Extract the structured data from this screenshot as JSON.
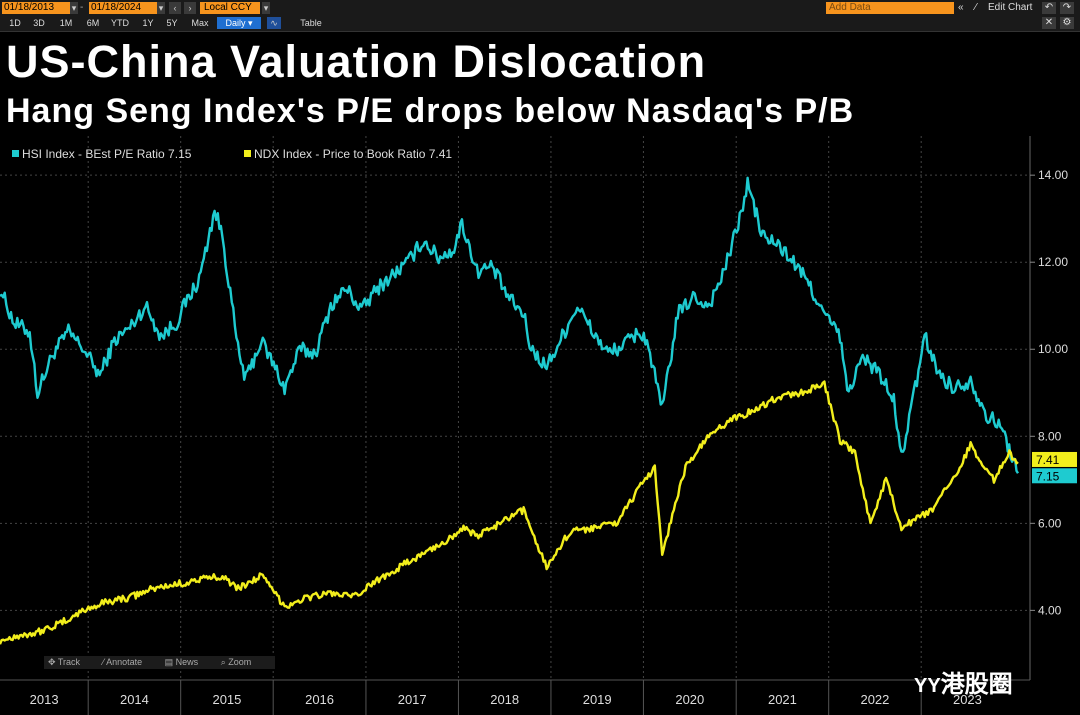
{
  "toolbar": {
    "start_date": "01/18/2013",
    "end_date": "01/18/2024",
    "currency": "Local CCY",
    "ranges": [
      "1D",
      "3D",
      "1M",
      "6M",
      "YTD",
      "1Y",
      "5Y",
      "Max"
    ],
    "frequency": "Daily",
    "table_label": "Table",
    "add_data_placeholder": "Add Data",
    "edit_chart_label": "Edit Chart",
    "back_icon": "double-chevron-left-icon",
    "undo_icon": "undo-icon",
    "redo_icon": "redo-icon",
    "settings_icon": "gear-icon"
  },
  "title": "US-China Valuation Dislocation",
  "subtitle": "Hang Seng Index's P/E drops below Nasdaq's P/B",
  "bottom_tools": {
    "track": "Track",
    "annotate": "Annotate",
    "news": "News",
    "zoom": "Zoom"
  },
  "watermark": "港股圈",
  "chart_data": {
    "type": "line",
    "x_start": "2013-01-18",
    "x_end": "2024-01-18",
    "x_tick_labels": [
      "2013",
      "2014",
      "2015",
      "2016",
      "2017",
      "2018",
      "2019",
      "2020",
      "2021",
      "2022",
      "2023"
    ],
    "y_tick_labels": [
      "4.00",
      "6.00",
      "8.00",
      "10.00",
      "12.00",
      "14.00"
    ],
    "ylim": [
      2.4,
      14.9
    ],
    "y_axis_side": "right",
    "grid": true,
    "legend_placement": "top-left",
    "series": [
      {
        "name": "HSI Index - BEst P/E Ratio 7.15",
        "color": "#1ecbd0",
        "last_value": 7.15,
        "last_value_label": "7.15",
        "points": [
          [
            "2013-01",
            11.4
          ],
          [
            "2013-03",
            10.6
          ],
          [
            "2013-05",
            10.4
          ],
          [
            "2013-06",
            9.0
          ],
          [
            "2013-08",
            9.9
          ],
          [
            "2013-10",
            10.4
          ],
          [
            "2013-12",
            10.0
          ],
          [
            "2014-02",
            9.4
          ],
          [
            "2014-04",
            10.2
          ],
          [
            "2014-06",
            10.5
          ],
          [
            "2014-08",
            11.0
          ],
          [
            "2014-10",
            10.3
          ],
          [
            "2014-12",
            10.6
          ],
          [
            "2015-01",
            11.0
          ],
          [
            "2015-03",
            11.6
          ],
          [
            "2015-05",
            13.2
          ],
          [
            "2015-06",
            12.6
          ],
          [
            "2015-08",
            10.0
          ],
          [
            "2015-09",
            9.3
          ],
          [
            "2015-11",
            10.2
          ],
          [
            "2016-01",
            9.5
          ],
          [
            "2016-02",
            9.1
          ],
          [
            "2016-04",
            10.0
          ],
          [
            "2016-06",
            9.9
          ],
          [
            "2016-08",
            11.0
          ],
          [
            "2016-10",
            11.4
          ],
          [
            "2016-12",
            10.9
          ],
          [
            "2017-02",
            11.4
          ],
          [
            "2017-04",
            11.7
          ],
          [
            "2017-06",
            12.0
          ],
          [
            "2017-08",
            12.5
          ],
          [
            "2017-10",
            12.1
          ],
          [
            "2017-12",
            12.3
          ],
          [
            "2018-01",
            12.9
          ],
          [
            "2018-03",
            11.8
          ],
          [
            "2018-05",
            11.9
          ],
          [
            "2018-07",
            11.2
          ],
          [
            "2018-09",
            10.8
          ],
          [
            "2018-10",
            10.0
          ],
          [
            "2018-12",
            9.6
          ],
          [
            "2019-02",
            10.3
          ],
          [
            "2019-04",
            11.0
          ],
          [
            "2019-06",
            10.4
          ],
          [
            "2019-08",
            9.9
          ],
          [
            "2019-10",
            10.1
          ],
          [
            "2019-12",
            10.4
          ],
          [
            "2020-01",
            10.2
          ],
          [
            "2020-03",
            8.6
          ],
          [
            "2020-05",
            10.8
          ],
          [
            "2020-07",
            11.2
          ],
          [
            "2020-09",
            11.0
          ],
          [
            "2020-11",
            11.8
          ],
          [
            "2021-01",
            13.0
          ],
          [
            "2021-02",
            13.8
          ],
          [
            "2021-04",
            12.6
          ],
          [
            "2021-06",
            12.4
          ],
          [
            "2021-08",
            12.0
          ],
          [
            "2021-10",
            11.5
          ],
          [
            "2021-12",
            10.8
          ],
          [
            "2022-02",
            10.3
          ],
          [
            "2022-03",
            9.0
          ],
          [
            "2022-05",
            9.8
          ],
          [
            "2022-07",
            9.5
          ],
          [
            "2022-09",
            8.8
          ],
          [
            "2022-10",
            7.5
          ],
          [
            "2022-12",
            9.3
          ],
          [
            "2023-01",
            10.3
          ],
          [
            "2023-03",
            9.4
          ],
          [
            "2023-05",
            9.1
          ],
          [
            "2023-07",
            9.3
          ],
          [
            "2023-09",
            8.5
          ],
          [
            "2023-11",
            8.2
          ],
          [
            "2024-01",
            7.15
          ]
        ]
      },
      {
        "name": "NDX Index - Price to Book Ratio 7.41",
        "color": "#f2ee1c",
        "last_value": 7.41,
        "last_value_label": "7.41",
        "points": [
          [
            "2013-01",
            3.3
          ],
          [
            "2013-03",
            3.4
          ],
          [
            "2013-06",
            3.5
          ],
          [
            "2013-09",
            3.7
          ],
          [
            "2013-12",
            4.0
          ],
          [
            "2014-03",
            4.2
          ],
          [
            "2014-06",
            4.3
          ],
          [
            "2014-09",
            4.5
          ],
          [
            "2014-12",
            4.6
          ],
          [
            "2015-03",
            4.7
          ],
          [
            "2015-06",
            4.8
          ],
          [
            "2015-08",
            4.5
          ],
          [
            "2015-11",
            4.8
          ],
          [
            "2016-02",
            4.1
          ],
          [
            "2016-05",
            4.3
          ],
          [
            "2016-08",
            4.4
          ],
          [
            "2016-11",
            4.3
          ],
          [
            "2017-02",
            4.7
          ],
          [
            "2017-05",
            5.0
          ],
          [
            "2017-08",
            5.3
          ],
          [
            "2017-11",
            5.6
          ],
          [
            "2018-01",
            5.9
          ],
          [
            "2018-03",
            5.7
          ],
          [
            "2018-06",
            6.0
          ],
          [
            "2018-09",
            6.3
          ],
          [
            "2018-12",
            5.0
          ],
          [
            "2019-03",
            5.8
          ],
          [
            "2019-06",
            5.9
          ],
          [
            "2019-09",
            6.0
          ],
          [
            "2019-12",
            6.8
          ],
          [
            "2020-02",
            7.3
          ],
          [
            "2020-03",
            5.3
          ],
          [
            "2020-06",
            7.3
          ],
          [
            "2020-09",
            8.0
          ],
          [
            "2020-12",
            8.4
          ],
          [
            "2021-03",
            8.6
          ],
          [
            "2021-06",
            8.9
          ],
          [
            "2021-09",
            9.0
          ],
          [
            "2021-12",
            9.2
          ],
          [
            "2022-02",
            7.9
          ],
          [
            "2022-04",
            7.6
          ],
          [
            "2022-06",
            6.0
          ],
          [
            "2022-08",
            7.0
          ],
          [
            "2022-10",
            5.9
          ],
          [
            "2022-12",
            6.1
          ],
          [
            "2023-02",
            6.3
          ],
          [
            "2023-05",
            7.1
          ],
          [
            "2023-07",
            7.8
          ],
          [
            "2023-10",
            7.0
          ],
          [
            "2023-12",
            7.6
          ],
          [
            "2024-01",
            7.41
          ]
        ]
      }
    ]
  }
}
